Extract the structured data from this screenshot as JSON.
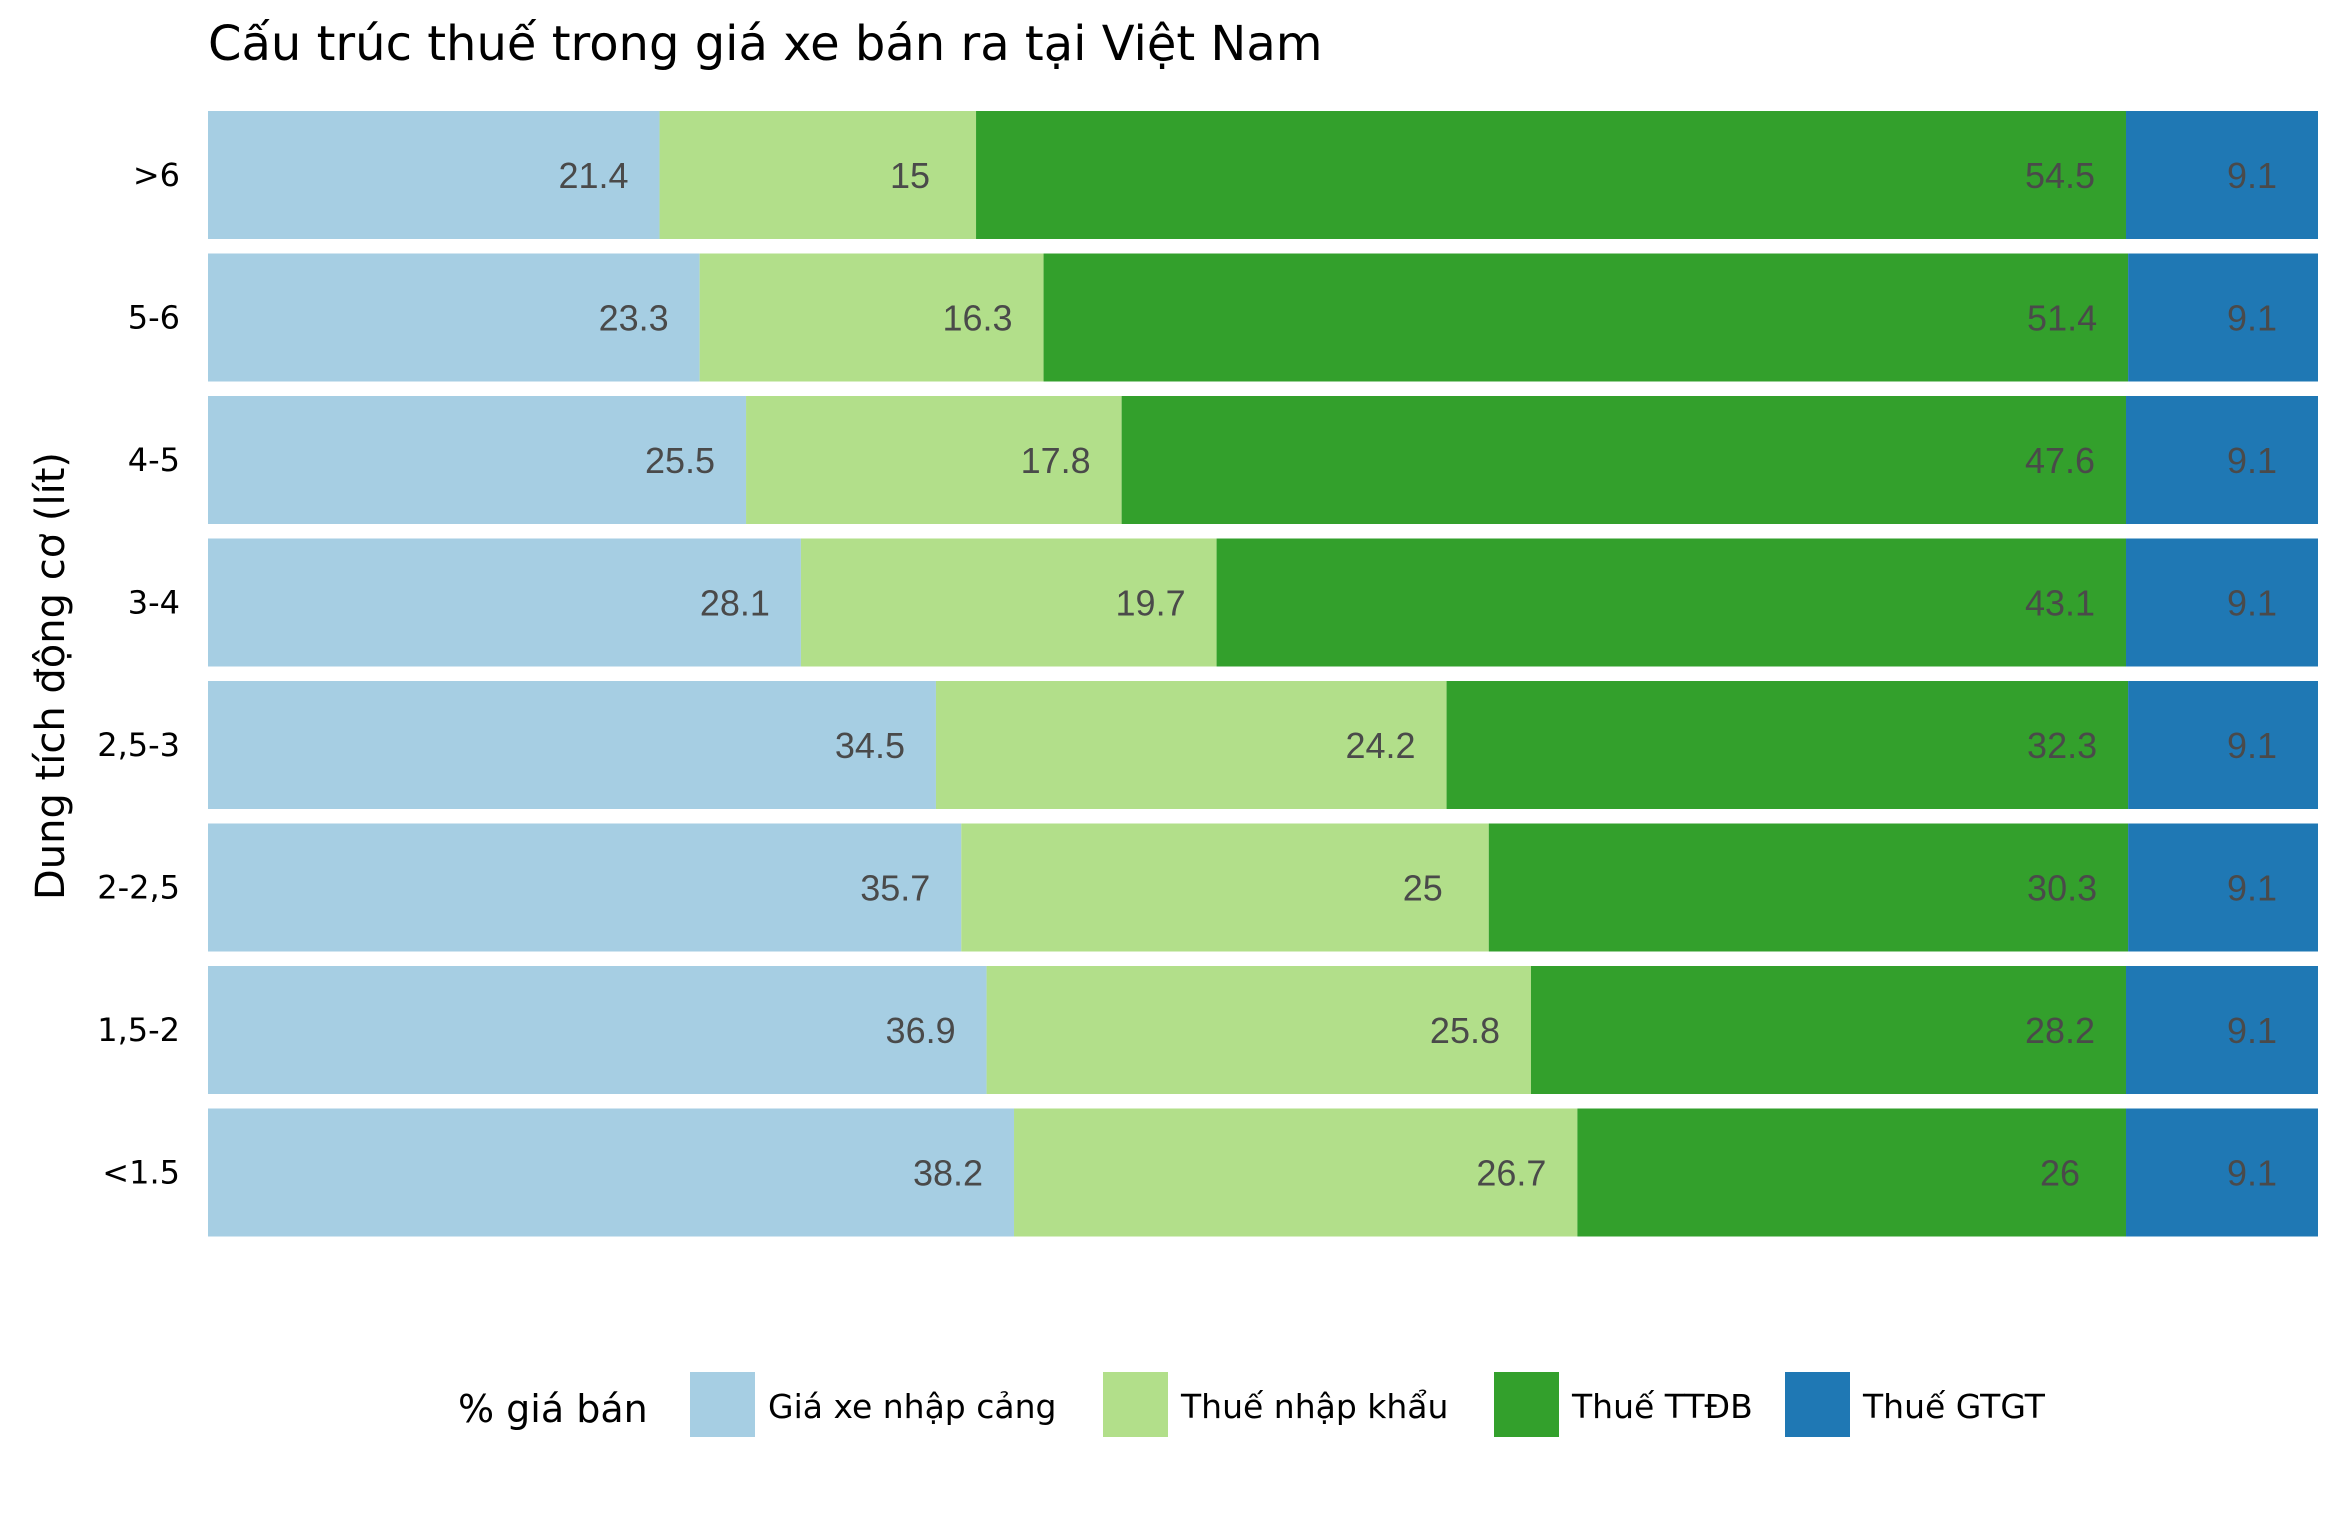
{
  "chart_data": {
    "type": "bar",
    "orientation": "horizontal",
    "stacked": true,
    "title": "Cấu trúc thuế trong giá xe bán ra tại Việt Nam",
    "xlabel": "",
    "ylabel": "Dung tích động cơ (lít)",
    "xlim": [
      0,
      100
    ],
    "grid": false,
    "legend_position": "bottom",
    "legend_title": "% giá bán",
    "categories": [
      ">6",
      "5-6",
      "4-5",
      "3-4",
      "2,5-3",
      "2-2,5",
      "1,5-2",
      "<1.5"
    ],
    "series": [
      {
        "name": "Giá xe nhập cảng",
        "color": "#a6cee3",
        "values": [
          21.4,
          23.3,
          25.5,
          28.1,
          34.5,
          35.7,
          36.9,
          38.2
        ]
      },
      {
        "name": "Thuế nhập khẩu",
        "color": "#b2df8a",
        "values": [
          15,
          16.3,
          17.8,
          19.7,
          24.2,
          25,
          25.8,
          26.7
        ]
      },
      {
        "name": "Thuế TTĐB",
        "color": "#33a02c",
        "values": [
          54.5,
          51.4,
          47.6,
          43.1,
          32.3,
          30.3,
          28.2,
          26
        ]
      },
      {
        "name": "Thuế GTGT",
        "color": "#1f78b4",
        "values": [
          9.1,
          9.1,
          9.1,
          9.1,
          9.1,
          9.1,
          9.1,
          9.1
        ]
      }
    ]
  }
}
